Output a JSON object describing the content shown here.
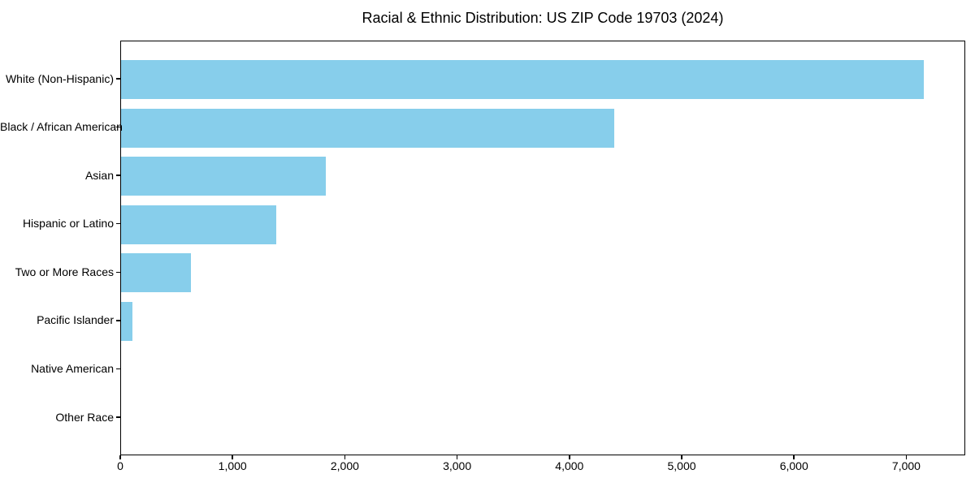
{
  "chart_data": {
    "type": "bar",
    "orientation": "horizontal",
    "title": "Racial & Ethnic Distribution: US ZIP Code 19703 (2024)",
    "categories": [
      "White (Non-Hispanic)",
      "Black / African American",
      "Asian",
      "Hispanic or Latino",
      "Two or More Races",
      "Pacific Islander",
      "Native American",
      "Other Race"
    ],
    "values": [
      7150,
      4390,
      1820,
      1385,
      620,
      98,
      0,
      0
    ],
    "xlabel": "",
    "ylabel": "",
    "xlim": [
      0,
      7525
    ],
    "x_ticks": [
      0,
      1000,
      2000,
      3000,
      4000,
      5000,
      6000,
      7000
    ],
    "x_tick_labels": [
      "0",
      "1,000",
      "2,000",
      "3,000",
      "4,000",
      "5,000",
      "6,000",
      "7,000"
    ],
    "bar_color": "#87CEEB",
    "axis_color": "#000000",
    "background_color": "#FFFFFF",
    "grid": false,
    "legend": null
  }
}
